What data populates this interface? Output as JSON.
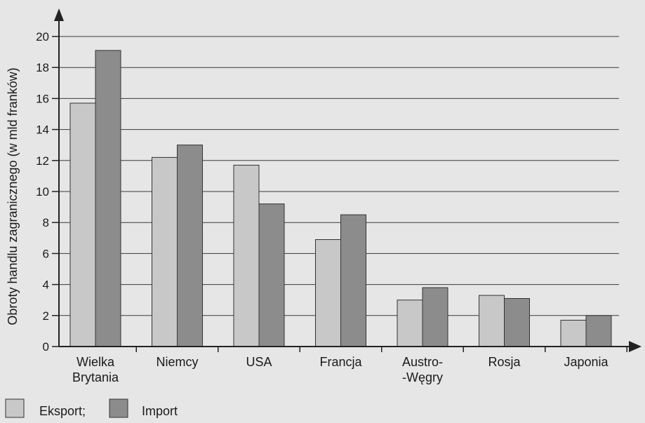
{
  "chart_data": {
    "type": "bar",
    "title": "",
    "xlabel": "",
    "ylabel": "Obroty handlu zagranicznego (w mld franków)",
    "ylim": [
      0,
      20
    ],
    "yticks": [
      0,
      2,
      4,
      6,
      8,
      10,
      12,
      14,
      16,
      18,
      20
    ],
    "grid": true,
    "legend_position": "bottom-left",
    "categories": [
      [
        "Wielka",
        "Brytania"
      ],
      [
        "Niemcy"
      ],
      [
        "USA"
      ],
      [
        "Francja"
      ],
      [
        "Austro-",
        "-Węgry"
      ],
      [
        "Rosja"
      ],
      [
        "Japonia"
      ]
    ],
    "series": [
      {
        "name": "Eksport;",
        "color": "#c8c8c8",
        "values": [
          15.7,
          12.2,
          11.7,
          6.9,
          3.0,
          3.3,
          1.7
        ]
      },
      {
        "name": "Import",
        "color": "#8c8c8c",
        "values": [
          19.1,
          13.0,
          9.2,
          8.5,
          3.8,
          3.1,
          2.0
        ]
      }
    ]
  }
}
